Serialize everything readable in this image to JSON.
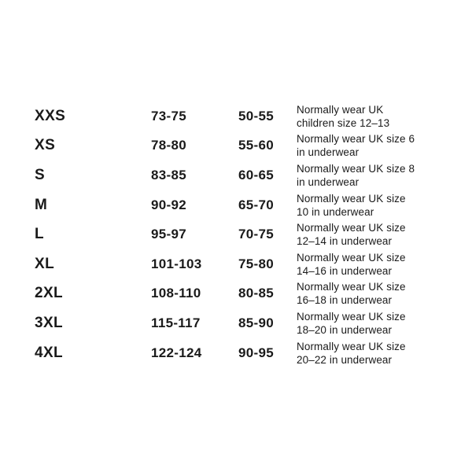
{
  "page": {
    "background_color": "#ffffff",
    "text_color": "#1a1a1a"
  },
  "size_table": {
    "rows": [
      {
        "size": "XXS",
        "range1": "73-75",
        "range2": "50-55",
        "note_line1": "Normally wear UK",
        "note_line2": "children size 12–13"
      },
      {
        "size": "XS",
        "range1": "78-80",
        "range2": "55-60",
        "note_line1": "Normally wear UK size 6",
        "note_line2": "in underwear"
      },
      {
        "size": "S",
        "range1": "83-85",
        "range2": "60-65",
        "note_line1": "Normally wear UK size 8",
        "note_line2": "in underwear"
      },
      {
        "size": "M",
        "range1": "90-92",
        "range2": "65-70",
        "note_line1": "Normally wear UK size",
        "note_line2": "10 in underwear"
      },
      {
        "size": "L",
        "range1": "95-97",
        "range2": "70-75",
        "note_line1": "Normally wear UK size",
        "note_line2": "12–14 in underwear"
      },
      {
        "size": "XL",
        "range1": "101-103",
        "range2": "75-80",
        "note_line1": "Normally wear UK size",
        "note_line2": "14–16 in underwear"
      },
      {
        "size": "2XL",
        "range1": "108-110",
        "range2": "80-85",
        "note_line1": "Normally wear UK size",
        "note_line2": "16–18 in underwear"
      },
      {
        "size": "3XL",
        "range1": "115-117",
        "range2": "85-90",
        "note_line1": "Normally wear UK size",
        "note_line2": "18–20 in underwear"
      },
      {
        "size": "4XL",
        "range1": "122-124",
        "range2": "90-95",
        "note_line1": "Normally wear UK size",
        "note_line2": "20–22 in underwear"
      }
    ]
  }
}
